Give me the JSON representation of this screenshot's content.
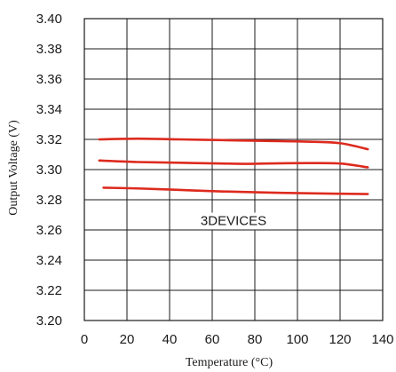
{
  "chart_data": {
    "type": "line",
    "xlabel": "Temperature (°C)",
    "ylabel": "Output Voltage (V)",
    "xlim": [
      0,
      140
    ],
    "ylim": [
      3.2,
      3.4
    ],
    "xticks": [
      "0",
      "20",
      "40",
      "60",
      "80",
      "100",
      "120",
      "140"
    ],
    "yticks": [
      "3.20",
      "3.22",
      "3.24",
      "3.26",
      "3.28",
      "3.30",
      "3.32",
      "3.34",
      "3.36",
      "3.38",
      "3.40"
    ],
    "grid": true,
    "annotation": "3DEVICES",
    "line_color": "#dd2a1e",
    "series": [
      {
        "x": [
          7,
          25,
          45,
          65,
          85,
          105,
          120,
          133
        ],
        "y": [
          3.32,
          3.3205,
          3.32,
          3.3195,
          3.319,
          3.3185,
          3.3175,
          3.3135
        ]
      },
      {
        "x": [
          7,
          25,
          45,
          65,
          75,
          85,
          105,
          120,
          133
        ],
        "y": [
          3.306,
          3.305,
          3.3045,
          3.304,
          3.3038,
          3.304,
          3.3043,
          3.304,
          3.3015
        ]
      },
      {
        "x": [
          9,
          25,
          45,
          65,
          85,
          105,
          120,
          133
        ],
        "y": [
          3.288,
          3.2875,
          3.2865,
          3.2855,
          3.2848,
          3.2843,
          3.284,
          3.2838
        ]
      }
    ]
  }
}
